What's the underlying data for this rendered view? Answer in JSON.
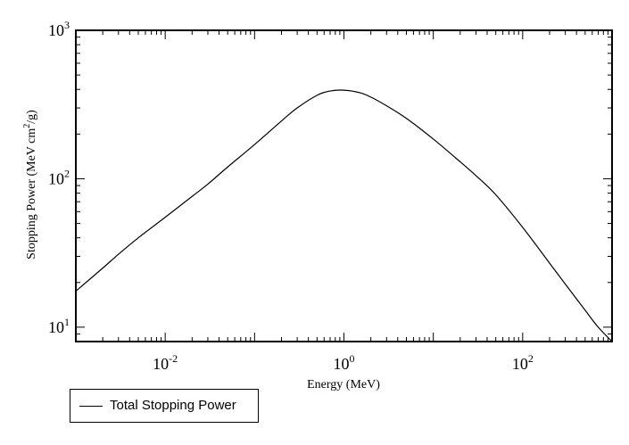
{
  "chart_data": {
    "type": "line",
    "title": "",
    "xlabel": "Energy (MeV)",
    "ylabel_main": "Stopping Power (MeV cm",
    "ylabel_sup": "2",
    "ylabel_end": "/g)",
    "x_scale": "log",
    "y_scale": "log",
    "xlim": [
      0.001,
      1000
    ],
    "ylim": [
      8,
      1000
    ],
    "x_ticks": [
      {
        "base": "10",
        "exp": "-2",
        "value": 0.01
      },
      {
        "base": "10",
        "exp": "0",
        "value": 1
      },
      {
        "base": "10",
        "exp": "2",
        "value": 100
      }
    ],
    "y_ticks": [
      {
        "base": "10",
        "exp": "1",
        "value": 10,
        "plain": ""
      },
      {
        "base": "10",
        "exp": "2",
        "value": 100,
        "plain": ""
      },
      {
        "base": "10",
        "exp": "3",
        "value": 1000,
        "plain": ""
      }
    ],
    "grid": false,
    "legend_position": "bottom-left, below plot",
    "series": [
      {
        "name": "Total Stopping Power",
        "color": "#000000",
        "x": [
          0.001,
          0.002,
          0.003,
          0.005,
          0.01,
          0.02,
          0.03,
          0.05,
          0.1,
          0.2,
          0.3,
          0.5,
          0.7,
          1.0,
          1.5,
          2,
          3,
          5,
          10,
          20,
          30,
          50,
          100,
          200,
          300,
          500,
          700,
          1000
        ],
        "y": [
          17.5,
          25,
          31,
          40,
          55,
          76,
          92,
          120,
          170,
          245,
          300,
          365,
          390,
          395,
          380,
          355,
          310,
          255,
          185,
          130,
          105,
          78,
          47,
          27,
          19.5,
          13,
          10,
          8
        ]
      }
    ]
  }
}
